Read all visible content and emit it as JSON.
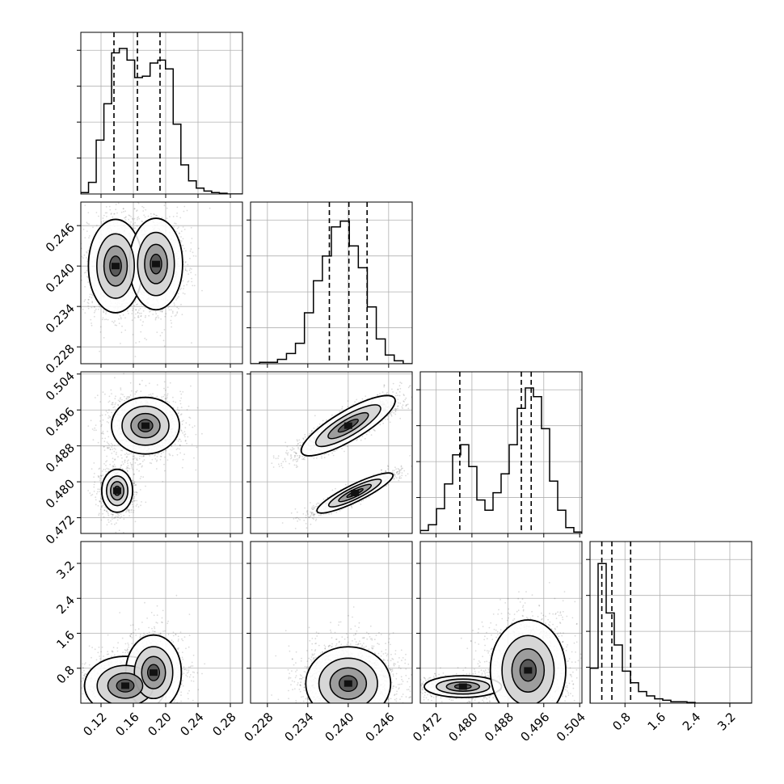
{
  "chart_data": {
    "type": "corner",
    "grid": true,
    "params": [
      {
        "range": [
          0.095,
          0.295
        ],
        "ticks": [
          0.12,
          0.16,
          0.2,
          0.24,
          0.28
        ],
        "tick_labels": [
          "0.12",
          "0.16",
          "0.20",
          "0.24",
          "0.28"
        ],
        "quantiles": [
          0.136,
          0.165,
          0.193
        ],
        "hist": [
          0.01,
          0.08,
          0.37,
          0.62,
          0.97,
          1.0,
          0.92,
          0.8,
          0.81,
          0.9,
          0.92,
          0.86,
          0.48,
          0.2,
          0.09,
          0.04,
          0.02,
          0.01,
          0.005,
          0,
          0
        ]
      },
      {
        "range": [
          0.2255,
          0.2495
        ],
        "ticks": [
          0.228,
          0.234,
          0.24,
          0.246
        ],
        "tick_labels": [
          "0.228",
          "0.234",
          "0.240",
          "0.246"
        ],
        "quantiles": [
          0.2372,
          0.2401,
          0.2428
        ],
        "hist": [
          0,
          0.01,
          0.01,
          0.03,
          0.07,
          0.14,
          0.35,
          0.57,
          0.74,
          0.94,
          0.98,
          0.81,
          0.66,
          0.39,
          0.17,
          0.06,
          0.02,
          0
        ]
      },
      {
        "range": [
          0.4685,
          0.5045
        ],
        "ticks": [
          0.472,
          0.48,
          0.488,
          0.496,
          0.504
        ],
        "tick_labels": [
          "0.472",
          "0.480",
          "0.488",
          "0.496",
          "0.504"
        ],
        "quantiles": [
          0.4773,
          0.491,
          0.4932
        ],
        "hist": [
          0.02,
          0.06,
          0.17,
          0.34,
          0.54,
          0.61,
          0.46,
          0.23,
          0.16,
          0.28,
          0.41,
          0.61,
          0.86,
          1.0,
          0.94,
          0.72,
          0.36,
          0.16,
          0.04,
          0.01
        ]
      },
      {
        "range": [
          0.0,
          3.7
        ],
        "ticks": [
          0.8,
          1.6,
          2.4,
          3.2
        ],
        "tick_labels": [
          "0.8",
          "1.6",
          "2.4",
          "3.2"
        ],
        "quantiles": [
          0.27,
          0.5,
          0.93
        ],
        "hist": [
          0.24,
          0.96,
          0.62,
          0.4,
          0.22,
          0.14,
          0.08,
          0.05,
          0.03,
          0.02,
          0.01,
          0.01,
          0.005,
          0,
          0,
          0,
          0,
          0,
          0,
          0
        ]
      }
    ],
    "panels": [
      {
        "row": 1,
        "col": 0,
        "clusters": [
          {
            "cx": 0.138,
            "cy": 0.24,
            "sx": 0.016,
            "sy": 0.0033,
            "w": 1.0
          },
          {
            "cx": 0.188,
            "cy": 0.2403,
            "sx": 0.016,
            "sy": 0.0033,
            "w": 0.9
          }
        ]
      },
      {
        "row": 2,
        "col": 0,
        "clusters": [
          {
            "cx": 0.14,
            "cy": 0.478,
            "sx": 0.01,
            "sy": 0.0025,
            "w": 0.55
          },
          {
            "cx": 0.175,
            "cy": 0.4925,
            "sx": 0.02,
            "sy": 0.003,
            "w": 1.0
          }
        ]
      },
      {
        "row": 2,
        "col": 1,
        "clusters": [
          {
            "cx": 0.24,
            "cy": 0.4925,
            "sx": 0.0034,
            "sy": 0.003,
            "rho": 0.86,
            "w": 1.0
          },
          {
            "cx": 0.241,
            "cy": 0.4775,
            "sx": 0.003,
            "sy": 0.0022,
            "rho": 0.92,
            "w": 0.55
          }
        ]
      },
      {
        "row": 3,
        "col": 0,
        "clusters": [
          {
            "cx": 0.15,
            "cy": 0.4,
            "sx": 0.024,
            "sy": 0.32,
            "w": 1.0
          },
          {
            "cx": 0.185,
            "cy": 0.7,
            "sx": 0.018,
            "sy": 0.45,
            "w": 0.55
          }
        ]
      },
      {
        "row": 3,
        "col": 1,
        "clusters": [
          {
            "cx": 0.24,
            "cy": 0.45,
            "sx": 0.003,
            "sy": 0.4,
            "w": 1.0
          }
        ]
      },
      {
        "row": 3,
        "col": 2,
        "clusters": [
          {
            "cx": 0.478,
            "cy": 0.38,
            "sx": 0.0045,
            "sy": 0.13,
            "w": 0.55
          },
          {
            "cx": 0.4925,
            "cy": 0.75,
            "sx": 0.004,
            "sy": 0.55,
            "w": 1.0
          }
        ]
      }
    ]
  }
}
